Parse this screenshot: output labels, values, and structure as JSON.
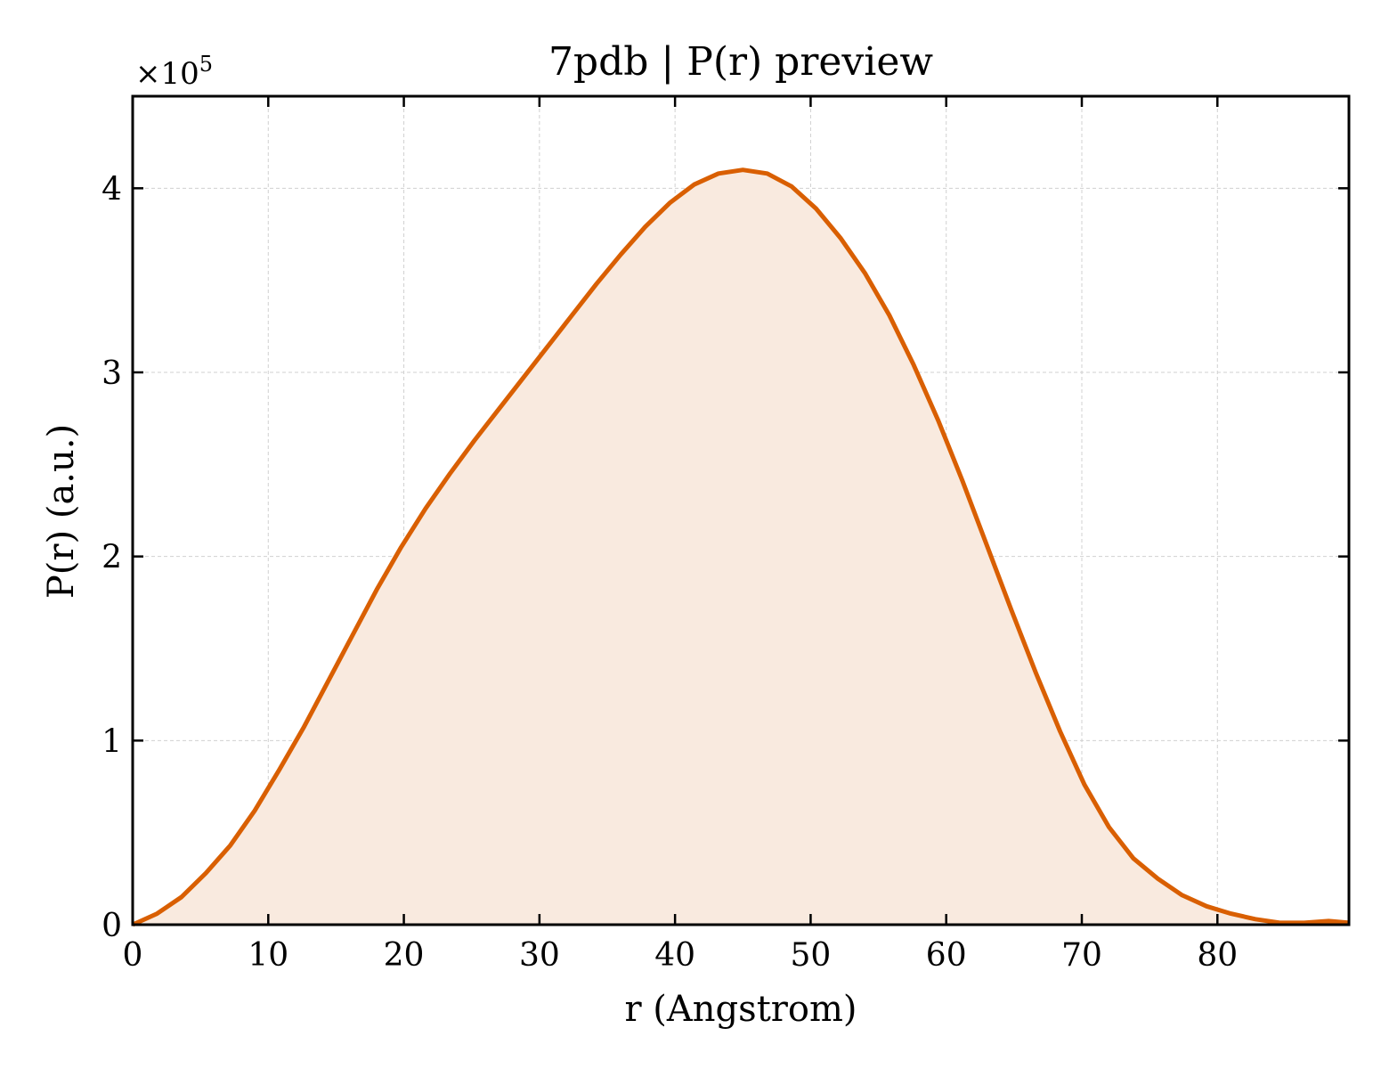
{
  "chart_data": {
    "type": "area",
    "title": "7pdb | P(r) preview",
    "xlabel": "r (Angstrom)",
    "ylabel": "P(r) (a.u.)",
    "y_multiplier_label": "×10",
    "y_multiplier_exponent": "5",
    "xlim": [
      0,
      89.7
    ],
    "ylim": [
      0,
      4.5
    ],
    "x_ticks": [
      0,
      10,
      20,
      30,
      40,
      50,
      60,
      70,
      80
    ],
    "y_ticks": [
      0,
      1,
      2,
      3,
      4
    ],
    "grid": true,
    "line_color": "#d95f02",
    "fill_color": "#f9eadf",
    "series": [
      {
        "x": [
          0,
          1.8,
          3.6,
          5.4,
          7.2,
          9.0,
          10.8,
          12.6,
          14.4,
          16.2,
          18.0,
          19.8,
          21.6,
          23.4,
          25.2,
          27.0,
          28.8,
          30.6,
          32.4,
          34.2,
          36.0,
          37.8,
          39.6,
          41.4,
          43.2,
          45.0,
          46.8,
          48.6,
          50.4,
          52.2,
          54.0,
          55.8,
          57.6,
          59.4,
          61.2,
          63.0,
          64.8,
          66.6,
          68.4,
          70.2,
          72.0,
          73.8,
          75.6,
          77.4,
          79.2,
          81.0,
          82.8,
          84.6,
          86.4,
          88.2,
          89.7
        ],
        "y": [
          0.0,
          0.06,
          0.15,
          0.28,
          0.43,
          0.62,
          0.84,
          1.07,
          1.32,
          1.57,
          1.82,
          2.05,
          2.26,
          2.45,
          2.63,
          2.8,
          2.97,
          3.14,
          3.31,
          3.48,
          3.64,
          3.79,
          3.92,
          4.02,
          4.08,
          4.1,
          4.08,
          4.01,
          3.89,
          3.73,
          3.54,
          3.31,
          3.04,
          2.74,
          2.41,
          2.06,
          1.71,
          1.37,
          1.05,
          0.76,
          0.53,
          0.36,
          0.25,
          0.16,
          0.1,
          0.06,
          0.03,
          0.01,
          0.01,
          0.02,
          0.01
        ]
      }
    ]
  }
}
